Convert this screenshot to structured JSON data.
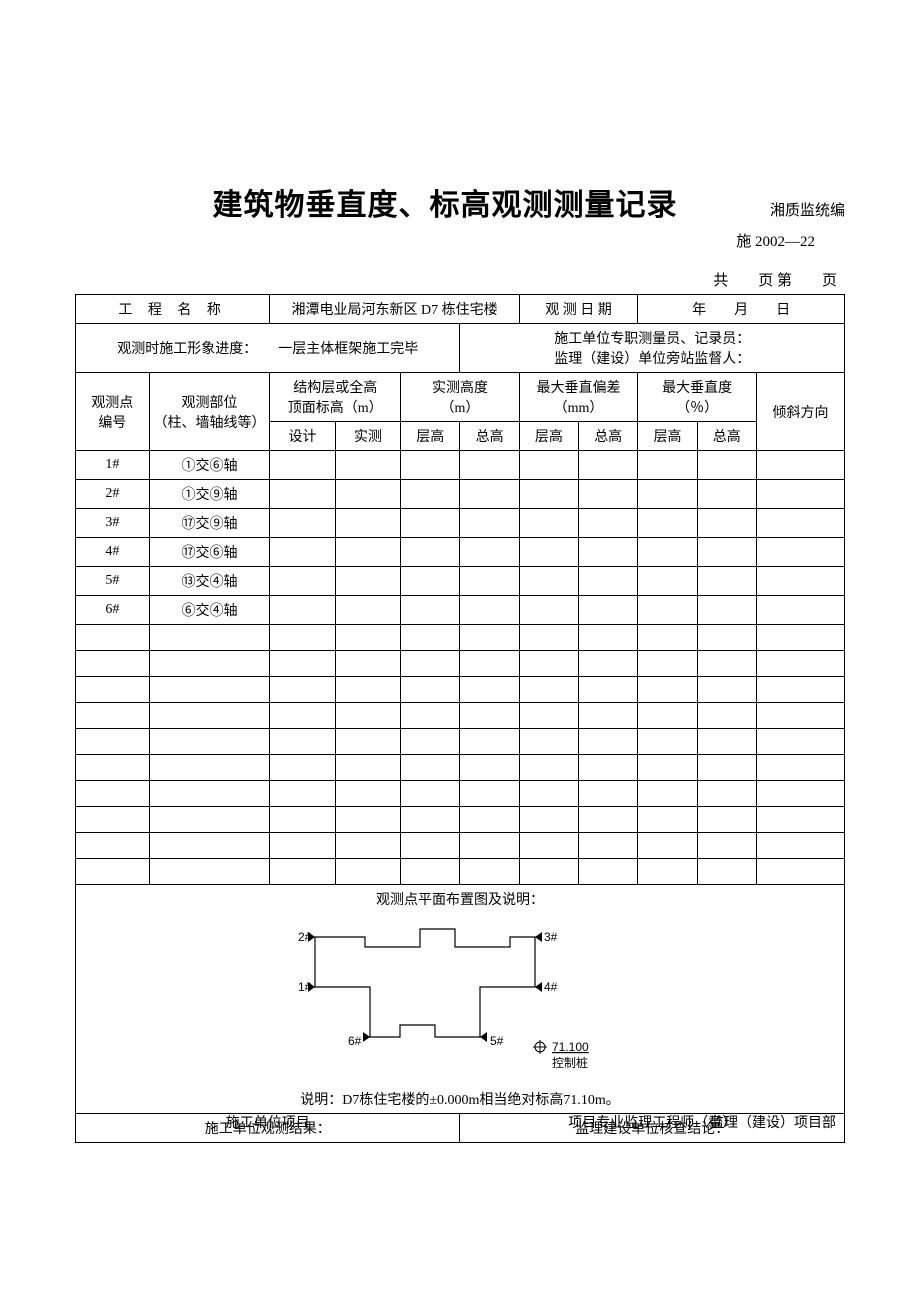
{
  "header": {
    "title": "建筑物垂直度、标高观测测量记录",
    "org": "湘质监统编",
    "form_no": "施 2002—22",
    "page_text": "共　　页 第　　页"
  },
  "info": {
    "proj_label": "工 程 名 称",
    "proj_name": "湘潭电业局河东新区 D7 栋住宅楼",
    "date_label": "观 测 日 期",
    "date_value": "年　　月　　日",
    "progress_label": "观测时施工形象进度：",
    "progress_value": "一层主体框架施工完毕",
    "personnel_line1": "施工单位专职测量员、记录员：",
    "personnel_line2": "监理（建设）单位旁站监督人："
  },
  "th": {
    "point_no": "观测点编号",
    "point_pos": "观测部位（柱、墙轴线等）",
    "struct_h": "结构层或全高顶面标高（m）",
    "actual_h": "实测高度（m）",
    "max_dev": "最大垂直偏差（mm）",
    "max_vert": "最大垂直度（％）",
    "tilt_dir": "倾斜方向",
    "design": "设计",
    "actual": "实测",
    "layer_h": "层高",
    "total_h": "总高"
  },
  "rows": [
    {
      "no": "1#",
      "pos": "①交⑥轴"
    },
    {
      "no": "2#",
      "pos": "①交⑨轴"
    },
    {
      "no": "3#",
      "pos": "⑰交⑨轴"
    },
    {
      "no": "4#",
      "pos": "⑰交⑥轴"
    },
    {
      "no": "5#",
      "pos": "⑬交④轴"
    },
    {
      "no": "6#",
      "pos": "⑥交④轴"
    }
  ],
  "blank_rows": 10,
  "diagram": {
    "label": "观测点平面布置图及说明：",
    "note": "说明：D7栋住宅楼的±0.000m相当绝对标高71.10m。",
    "pile_val": "71.100",
    "pile_label": "控制桩",
    "pts": {
      "p1": "1#",
      "p2": "2#",
      "p3": "3#",
      "p4": "4#",
      "p5": "5#",
      "p6": "6#"
    }
  },
  "results": {
    "left_label": "施工单位观测结果：",
    "left_bottom": "施工单位项目",
    "right_label": "监理建设单位核查结论：",
    "right_bottom": "项目专业监理工程师（章）",
    "right_bottom2": "监理（建设）项目部"
  },
  "colors": {
    "border": "#000000",
    "bg": "#ffffff",
    "text": "#000000"
  }
}
